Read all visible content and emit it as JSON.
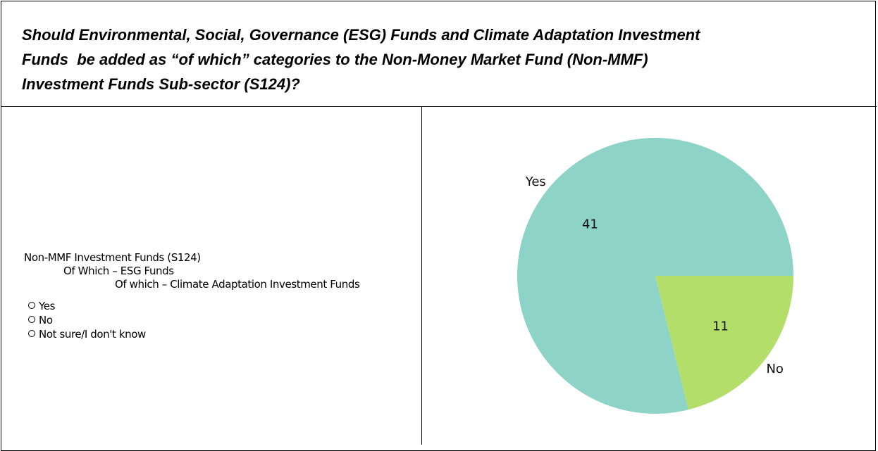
{
  "header": {
    "question_lines": [
      "Should Environmental, Social, Governance (ESG) Funds and Climate Adaptation Investment",
      "Funds  be added as “of which” categories to the Non-Money Market Fund (Non-MMF)",
      "Investment Funds Sub-sector (S124)?"
    ]
  },
  "left": {
    "hierarchy": [
      "Non-MMF Investment Funds (S124)",
      "Of Which – ESG Funds",
      "Of which – Climate Adaptation Investment Funds"
    ],
    "options": [
      "Yes",
      "No",
      "Not sure/I don't know"
    ]
  },
  "chart_data": {
    "type": "pie",
    "categories": [
      "Yes",
      "No"
    ],
    "values": [
      41,
      11
    ],
    "colors": [
      "#8dd3c7",
      "#b3de69"
    ]
  }
}
